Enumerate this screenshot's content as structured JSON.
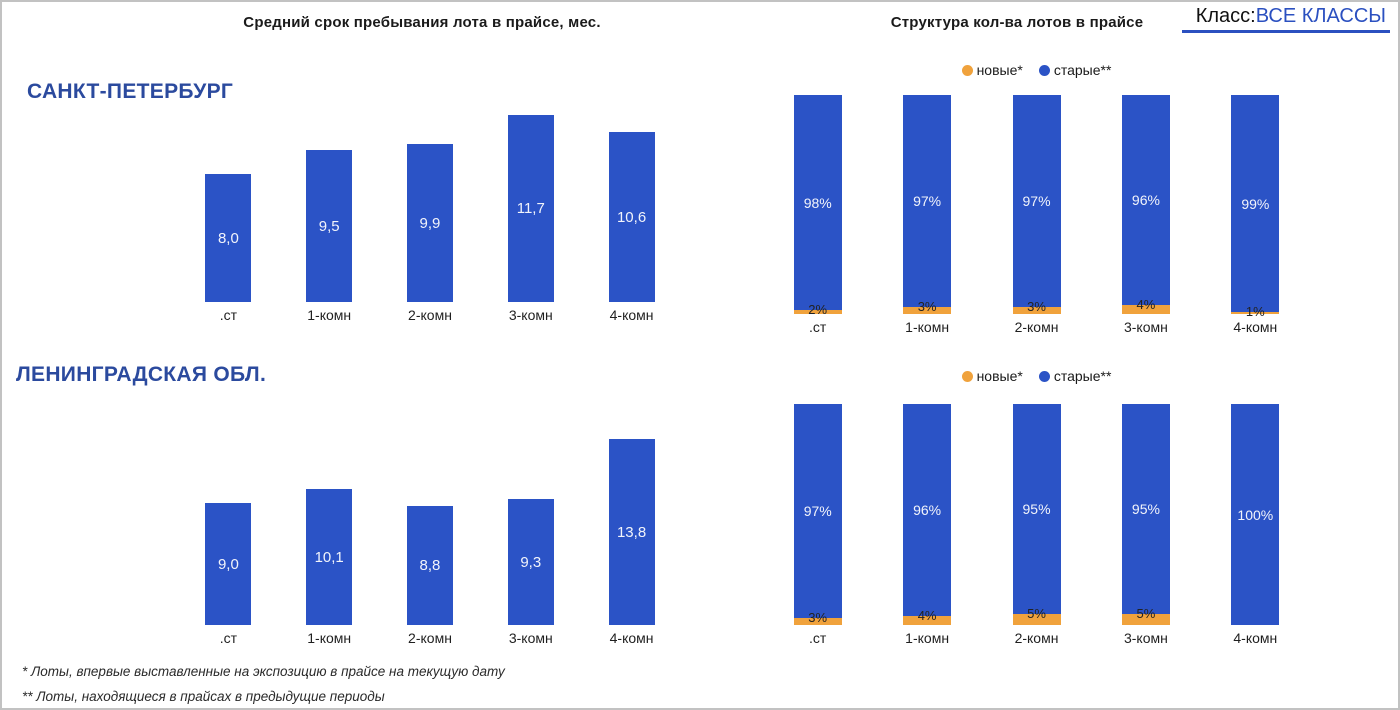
{
  "header": {
    "left_chart_title": "Средний срок пребывания лота в прайсе, мес.",
    "right_chart_title": "Структура кол-ва  лотов в прайсе",
    "class_label": "Класс:",
    "class_value": "ВСЕ КЛАССЫ"
  },
  "legend": {
    "new_label": "новые*",
    "old_label": "старые**"
  },
  "colors": {
    "bar_blue": "#2b53c6",
    "bar_orange": "#f0a23c",
    "region_title_blue": "#2b4a9e",
    "class_accent_blue": "#2b50c0"
  },
  "sections": [
    {
      "region": "САНКТ-ПЕТЕРБУРГ"
    },
    {
      "region": "ЛЕНИНГРАДСКАЯ ОБЛ."
    }
  ],
  "footnotes": [
    "* Лоты, впервые выставленные на экспозицию в прайсе на текущую дату",
    "** Лоты, находящиеся в прайсах в предыдущие периоды"
  ],
  "chart_data": [
    {
      "type": "bar",
      "region": "САНКТ-ПЕТЕРБУРГ",
      "title": "Средний срок пребывания лота в прайсе, мес.",
      "categories": [
        ".ст",
        "1-комн",
        "2-комн",
        "3-комн",
        "4-комн"
      ],
      "values": [
        8.0,
        9.5,
        9.9,
        11.7,
        10.6
      ],
      "value_labels": [
        "8,0",
        "9,5",
        "9,9",
        "11,7",
        "10,6"
      ],
      "grid": false,
      "axes_hidden": true
    },
    {
      "type": "bar",
      "stacked": true,
      "region": "САНКТ-ПЕТЕРБУРГ",
      "title": "Структура кол-ва  лотов в прайсе",
      "categories": [
        ".ст",
        "1-комн",
        "2-комн",
        "3-комн",
        "4-комн"
      ],
      "series": [
        {
          "name": "новые*",
          "color": "#f0a23c",
          "values": [
            2,
            3,
            3,
            4,
            1
          ],
          "labels": [
            "2%",
            "3%",
            "3%",
            "4%",
            "1%"
          ]
        },
        {
          "name": "старые**",
          "color": "#2b53c6",
          "values": [
            98,
            97,
            97,
            96,
            99
          ],
          "labels": [
            "98%",
            "97%",
            "97%",
            "96%",
            "99%"
          ]
        }
      ],
      "ylim": [
        0,
        100
      ],
      "legend_position": "top",
      "grid": false,
      "axes_hidden": true
    },
    {
      "type": "bar",
      "region": "ЛЕНИНГРАДСКАЯ ОБЛ.",
      "title": "Средний срок пребывания лота в прайсе, мес.",
      "categories": [
        ".ст",
        "1-комн",
        "2-комн",
        "3-комн",
        "4-комн"
      ],
      "values": [
        9.0,
        10.1,
        8.8,
        9.3,
        13.8
      ],
      "value_labels": [
        "9,0",
        "10,1",
        "8,8",
        "9,3",
        "13,8"
      ],
      "grid": false,
      "axes_hidden": true
    },
    {
      "type": "bar",
      "stacked": true,
      "region": "ЛЕНИНГРАДСКАЯ ОБЛ.",
      "title": "Структура кол-ва  лотов в прайсе",
      "categories": [
        ".ст",
        "1-комн",
        "2-комн",
        "3-комн",
        "4-комн"
      ],
      "series": [
        {
          "name": "новые*",
          "color": "#f0a23c",
          "values": [
            3,
            4,
            5,
            5,
            0
          ],
          "labels": [
            "3%",
            "4%",
            "5%",
            "5%",
            ""
          ]
        },
        {
          "name": "старые**",
          "color": "#2b53c6",
          "values": [
            97,
            96,
            95,
            95,
            100
          ],
          "labels": [
            "97%",
            "96%",
            "95%",
            "95%",
            "100%"
          ]
        }
      ],
      "ylim": [
        0,
        100
      ],
      "legend_position": "top",
      "grid": false,
      "axes_hidden": true
    }
  ]
}
